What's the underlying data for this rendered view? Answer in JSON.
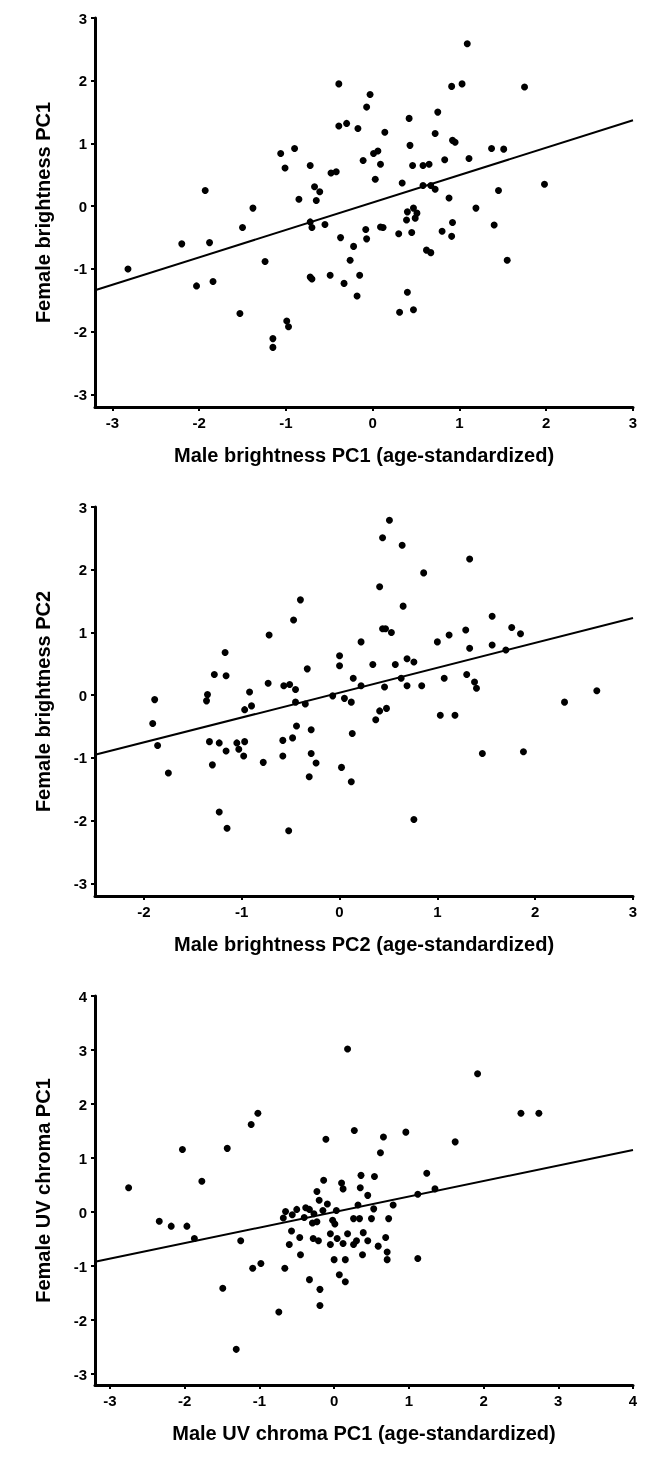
{
  "chart_data": [
    {
      "type": "scatter",
      "xlabel": "Male brightness PC1 (age-standardized)",
      "ylabel": "Female brightness PC1",
      "xlim": [
        -3.2,
        3
      ],
      "ylim": [
        -3.2,
        3
      ],
      "xticks": [
        -3,
        -2,
        -1,
        0,
        1,
        2,
        3
      ],
      "yticks": [
        -3,
        -2,
        -1,
        0,
        1,
        2,
        3
      ],
      "grid": false,
      "series": [
        {
          "marker": "circle",
          "color": "#000000",
          "x": [
            1.09,
            -0.39,
            -0.03,
            -0.07,
            0.91,
            1.03,
            1.75,
            0.42,
            0.75,
            -0.39,
            -0.3,
            -0.17,
            0.14,
            0.72,
            0.43,
            0.92,
            0.95,
            -1.06,
            -0.9,
            1.37,
            1.51,
            0.01,
            0.06,
            -0.11,
            0.09,
            0.83,
            1.11,
            -1.01,
            -0.72,
            0.46,
            0.58,
            0.65,
            -0.48,
            -0.42,
            0.03,
            0.34,
            -1.93,
            -0.67,
            -0.61,
            0.58,
            0.67,
            0.72,
            1.45,
            1.98,
            -0.85,
            -0.65,
            0.88,
            -1.38,
            1.19,
            0.4,
            0.47,
            0.51,
            0.49,
            0.39,
            -0.72,
            -0.7,
            -0.55,
            -0.08,
            0.09,
            0.12,
            0.92,
            1.4,
            -1.5,
            -2.2,
            -1.88,
            -0.37,
            -0.07,
            0.3,
            0.45,
            0.8,
            0.91,
            -0.22,
            0.62,
            0.67,
            -2.82,
            -1.24,
            -0.26,
            1.55,
            -2.03,
            -1.84,
            -0.72,
            -0.7,
            -0.49,
            -0.15,
            -0.33,
            -0.18,
            0.4,
            -1.53,
            0.31,
            0.47,
            -0.99,
            -0.97,
            -1.15,
            -1.15
          ],
          "values": [
            2.59,
            1.95,
            1.78,
            1.58,
            1.91,
            1.95,
            1.9,
            1.4,
            1.5,
            1.28,
            1.32,
            1.24,
            1.18,
            1.16,
            0.97,
            1.05,
            1.02,
            0.84,
            0.92,
            0.92,
            0.91,
            0.84,
            0.88,
            0.73,
            0.67,
            0.74,
            0.76,
            0.61,
            0.65,
            0.65,
            0.65,
            0.67,
            0.53,
            0.55,
            0.43,
            0.37,
            0.25,
            0.31,
            0.23,
            0.33,
            0.33,
            0.27,
            0.25,
            0.35,
            0.11,
            0.09,
            0.13,
            -0.03,
            -0.03,
            -0.09,
            -0.03,
            -0.11,
            -0.19,
            -0.22,
            -0.25,
            -0.34,
            -0.29,
            -0.37,
            -0.33,
            -0.34,
            -0.26,
            -0.3,
            -0.34,
            -0.6,
            -0.58,
            -0.5,
            -0.52,
            -0.44,
            -0.42,
            -0.4,
            -0.48,
            -0.64,
            -0.7,
            -0.74,
            -1,
            -0.88,
            -0.86,
            -0.86,
            -1.27,
            -1.2,
            -1.13,
            -1.16,
            -1.1,
            -1.1,
            -1.23,
            -1.43,
            -1.37,
            -1.71,
            -1.69,
            -1.65,
            -1.83,
            -1.92,
            -2.11,
            -2.25
          ]
        },
        {
          "type": "line",
          "marker": "none",
          "color": "#000000",
          "x": [
            -3.2,
            3
          ],
          "values": [
            -1.34,
            1.37
          ]
        }
      ]
    },
    {
      "type": "scatter",
      "xlabel": "Male brightness PC2 (age-standardized)",
      "ylabel": "Female brightness PC2",
      "xlim": [
        -2.5,
        3
      ],
      "ylim": [
        -3.2,
        3
      ],
      "xticks": [
        -2,
        -1,
        0,
        1,
        2,
        3
      ],
      "yticks": [
        -3,
        -2,
        -1,
        0,
        1,
        2,
        3
      ],
      "grid": false,
      "series": [
        {
          "marker": "circle",
          "color": "#000000",
          "x": [
            0.51,
            0.44,
            0.64,
            1.33,
            0.86,
            0.41,
            -0.4,
            0.65,
            -0.47,
            1.56,
            0.44,
            0.47,
            0.53,
            1.76,
            1.85,
            1.29,
            1.12,
            -0.72,
            0.22,
            1,
            1.33,
            1.56,
            1.7,
            -1.17,
            0,
            0,
            0.69,
            0.76,
            0.34,
            0.57,
            -0.33,
            -1.28,
            -1.16,
            0.14,
            0.63,
            1.07,
            1.3,
            1.38,
            1.4,
            -0.73,
            -0.57,
            -0.51,
            -0.45,
            0.22,
            0.46,
            0.69,
            0.84,
            -1.35,
            -0.92,
            -1.89,
            -1.36,
            -0.07,
            0.05,
            0.12,
            -0.45,
            -0.35,
            2.3,
            2.63,
            -0.9,
            -0.97,
            0.41,
            0.48,
            0.37,
            1.03,
            1.18,
            -1.91,
            -0.44,
            -0.29,
            0.13,
            -1.86,
            -1.33,
            -1.23,
            -1.05,
            -0.97,
            -1.03,
            -1.16,
            -0.98,
            -0.58,
            -0.48,
            -0.58,
            -0.29,
            -0.24,
            -0.78,
            -1.3,
            -1.75,
            0.02,
            -0.31,
            0.12,
            1.46,
            1.88,
            -1.23,
            -1.15,
            -0.52,
            0.76
          ],
          "values": [
            2.79,
            2.51,
            2.39,
            2.17,
            1.95,
            1.73,
            1.52,
            1.42,
            1.2,
            1.26,
            1.06,
            1.06,
            1,
            1.08,
            0.98,
            1.04,
            0.96,
            0.96,
            0.85,
            0.85,
            0.75,
            0.8,
            0.72,
            0.68,
            0.63,
            0.47,
            0.58,
            0.53,
            0.49,
            0.49,
            0.42,
            0.33,
            0.31,
            0.27,
            0.27,
            0.27,
            0.33,
            0.21,
            0.11,
            0.19,
            0.15,
            0.17,
            0.09,
            0.15,
            0.13,
            0.15,
            0.15,
            0.01,
            0.05,
            -0.07,
            -0.09,
            -0.01,
            -0.05,
            -0.11,
            -0.11,
            -0.14,
            -0.11,
            0.07,
            -0.17,
            -0.23,
            -0.25,
            -0.21,
            -0.39,
            -0.32,
            -0.32,
            -0.45,
            -0.49,
            -0.55,
            -0.61,
            -0.8,
            -0.74,
            -0.76,
            -0.76,
            -0.74,
            -0.86,
            -0.89,
            -0.97,
            -0.72,
            -0.68,
            -0.97,
            -0.93,
            -1.08,
            -1.07,
            -1.11,
            -1.24,
            -1.15,
            -1.3,
            -1.38,
            -0.93,
            -0.9,
            -1.86,
            -2.12,
            -2.16,
            -1.98
          ]
        },
        {
          "type": "line",
          "marker": "none",
          "color": "#000000",
          "x": [
            -2.5,
            3
          ],
          "values": [
            -0.95,
            1.23
          ]
        }
      ]
    },
    {
      "type": "scatter",
      "xlabel": "Male UV chroma PC1 (age-standardized)",
      "ylabel": "Female UV chroma PC1",
      "xlim": [
        -3.2,
        4
      ],
      "ylim": [
        -3.2,
        4
      ],
      "xticks": [
        -3,
        -2,
        -1,
        0,
        1,
        2,
        3,
        4
      ],
      "yticks": [
        -3,
        -2,
        -1,
        0,
        1,
        2,
        3,
        4
      ],
      "grid": false,
      "series": [
        {
          "marker": "circle",
          "color": "#000000",
          "x": [
            0.18,
            1.92,
            2.5,
            2.74,
            -1.02,
            -1.11,
            -2.03,
            -1.43,
            -0.11,
            0.27,
            0.66,
            0.96,
            1.62,
            0.62,
            -1.77,
            -2.75,
            -0.14,
            0.1,
            0.12,
            0.36,
            0.54,
            0.35,
            0.45,
            1.24,
            1.35,
            1.12,
            -0.23,
            -0.2,
            -0.09,
            0.32,
            0.53,
            0.79,
            -0.65,
            -0.5,
            -0.38,
            -0.33,
            -0.27,
            -0.15,
            0.03,
            -0.68,
            -0.56,
            -0.4,
            -0.29,
            -0.23,
            -0.02,
            0.01,
            0.26,
            0.34,
            0.5,
            0.73,
            -2.34,
            -2.18,
            -1.97,
            -1.87,
            -1.25,
            -0.57,
            -0.46,
            -0.28,
            -0.21,
            -0.05,
            0.04,
            0.12,
            0.18,
            0.3,
            0.39,
            0.45,
            0.26,
            -0.05,
            -0.6,
            0.59,
            0.69,
            0.71,
            0.71,
            1.12,
            0.38,
            -0.45,
            0,
            0.15,
            -1.09,
            -0.98,
            -0.66,
            -0.33,
            0.07,
            0.15,
            -0.19,
            -1.49,
            -0.19,
            -0.74,
            -1.31
          ],
          "values": [
            3.02,
            2.56,
            1.83,
            1.83,
            1.83,
            1.62,
            1.16,
            1.18,
            1.35,
            1.51,
            1.39,
            1.48,
            1.3,
            1.1,
            0.57,
            0.45,
            0.59,
            0.54,
            0.43,
            0.68,
            0.66,
            0.45,
            0.31,
            0.72,
            0.43,
            0.33,
            0.38,
            0.22,
            0.15,
            0.13,
            0.06,
            0.13,
            0.01,
            0.05,
            0.08,
            0.05,
            -0.03,
            0.03,
            0.03,
            -0.11,
            -0.05,
            -0.1,
            -0.2,
            -0.18,
            -0.15,
            -0.22,
            -0.12,
            -0.12,
            -0.12,
            -0.12,
            -0.17,
            -0.26,
            -0.26,
            -0.49,
            -0.53,
            -0.35,
            -0.47,
            -0.49,
            -0.53,
            -0.4,
            -0.49,
            -0.58,
            -0.4,
            -0.53,
            -0.38,
            -0.53,
            -0.6,
            -0.6,
            -0.6,
            -0.63,
            -0.47,
            -0.74,
            -0.88,
            -0.86,
            -0.79,
            -0.79,
            -0.88,
            -0.88,
            -1.04,
            -0.95,
            -1.04,
            -1.25,
            -1.16,
            -1.29,
            -1.43,
            -1.41,
            -1.73,
            -1.85,
            -2.54
          ]
        },
        {
          "type": "line",
          "marker": "none",
          "color": "#000000",
          "x": [
            -3.2,
            4
          ],
          "values": [
            -0.92,
            1.15
          ]
        }
      ]
    }
  ]
}
